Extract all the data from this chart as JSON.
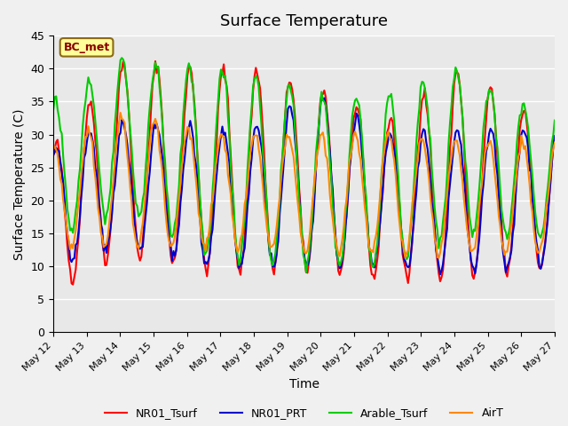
{
  "title": "Surface Temperature",
  "xlabel": "Time",
  "ylabel": "Surface Temperature (C)",
  "ylim": [
    0,
    45
  ],
  "yticks": [
    0,
    5,
    10,
    15,
    20,
    25,
    30,
    35,
    40,
    45
  ],
  "bg_color": "#e8e8e8",
  "plot_bg": "#e8e8e8",
  "annotation_text": "BC_met",
  "annotation_color": "#8b0000",
  "annotation_bg": "#ffff99",
  "series_colors": {
    "NR01_Tsurf": "#ff0000",
    "NR01_PRT": "#0000cc",
    "Arable_Tsurf": "#00cc00",
    "AirT": "#ff8800"
  },
  "series_lw": 1.5,
  "x_start_day": 12,
  "x_end_day": 27,
  "xtick_days": [
    12,
    13,
    14,
    15,
    16,
    17,
    18,
    19,
    20,
    21,
    22,
    23,
    24,
    25,
    26,
    27
  ],
  "legend_labels": [
    "NR01_Tsurf",
    "NR01_PRT",
    "Arable_Tsurf",
    "AirT"
  ]
}
